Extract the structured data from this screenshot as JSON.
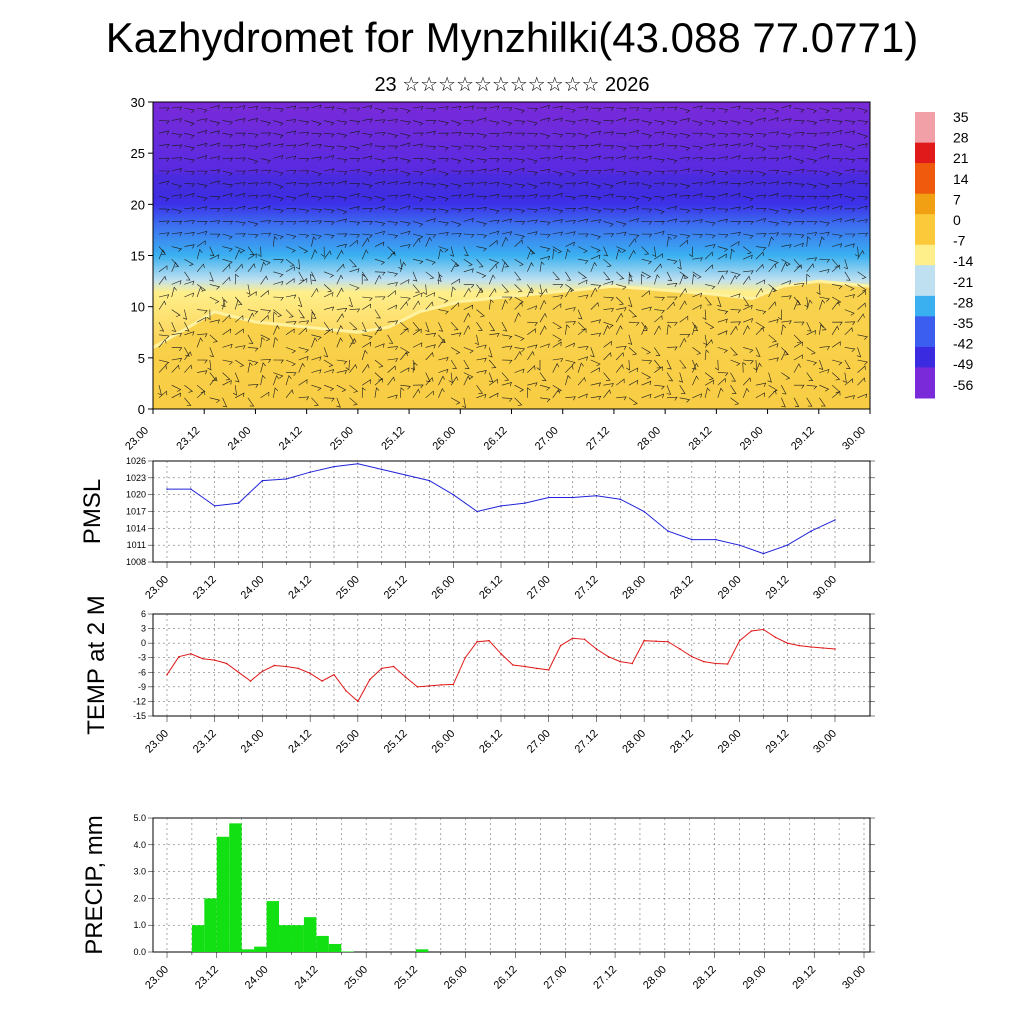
{
  "title": "Kazhydromet for Mynzhilki(43.088 77.0771)",
  "subtitle": {
    "day": "23",
    "month_glyphs": "☆☆☆☆☆☆☆☆☆☆☆",
    "year": "2026"
  },
  "time_labels": [
    "23.00",
    "23.12",
    "24.00",
    "24.12",
    "25.00",
    "25.12",
    "26.00",
    "26.12",
    "27.00",
    "27.12",
    "28.00",
    "28.12",
    "29.00",
    "29.12",
    "30.00"
  ],
  "chart_data": [
    {
      "type": "heatmap",
      "name": "temperature-wind-cross-section",
      "xlabel": "",
      "ylabel": "",
      "ylim": [
        0,
        30
      ],
      "yticks": [
        "0",
        "5",
        "10",
        "15",
        "20",
        "25",
        "30"
      ],
      "colorbar": {
        "labels": [
          "35",
          "28",
          "21",
          "14",
          "7",
          "0",
          "-7",
          "-14",
          "-21",
          "-28",
          "-35",
          "-42",
          "-49",
          "-56"
        ],
        "range": [
          -60,
          40
        ],
        "colors": [
          "#7a2ad8",
          "#3a2ae0",
          "#3c5ef0",
          "#3ab0f0",
          "#bfe0f0",
          "#ffef8a",
          "#fbc93a",
          "#f0a012",
          "#f05a0c",
          "#e01a1a",
          "#f2a0a8"
        ]
      },
      "surface_levels_x_y": [
        [
          0,
          0.5
        ],
        [
          1,
          0.9
        ],
        [
          2,
          0.6
        ],
        [
          3,
          -0.4
        ],
        [
          4,
          -1.0
        ],
        [
          5,
          0.4
        ],
        [
          6,
          1.0
        ],
        [
          7,
          1.4
        ],
        [
          8,
          1.6
        ],
        [
          9,
          1.2
        ],
        [
          10,
          1.0
        ],
        [
          11,
          1.2
        ],
        [
          12,
          1.0
        ],
        [
          13,
          0.8
        ],
        [
          14,
          0.6
        ]
      ],
      "zero_isotherm_level_x_y": [
        [
          0,
          6
        ],
        [
          0.7,
          8
        ],
        [
          1.2,
          9.5
        ],
        [
          2,
          8.5
        ],
        [
          3,
          8
        ],
        [
          4,
          7.5
        ],
        [
          4.6,
          8
        ],
        [
          5.2,
          9.5
        ],
        [
          6,
          10.5
        ],
        [
          7,
          11
        ],
        [
          8,
          11.5
        ],
        [
          9,
          12
        ],
        [
          10,
          11.6
        ],
        [
          11,
          11.2
        ],
        [
          11.7,
          10.8
        ],
        [
          12.3,
          12
        ],
        [
          13,
          12.5
        ],
        [
          14,
          12
        ]
      ]
    },
    {
      "type": "line",
      "name": "PMSL",
      "ylabel": "PMSL",
      "ylim": [
        1008,
        1026
      ],
      "yticks": [
        "1008",
        "1011",
        "1014",
        "1017",
        "1020",
        "1023",
        "1026"
      ],
      "color": "#1f22d8",
      "x": [
        0,
        0.5,
        1,
        1.5,
        2,
        2.5,
        3,
        3.5,
        4,
        4.5,
        5,
        5.5,
        6,
        6.5,
        7,
        7.5,
        8,
        8.5,
        9,
        9.5,
        10,
        10.5,
        11,
        11.5,
        12,
        12.5,
        13,
        13.5,
        14
      ],
      "values": [
        1021,
        1021,
        1018,
        1018.5,
        1022.5,
        1022.8,
        1024,
        1025,
        1025.5,
        1024.5,
        1023.5,
        1022.5,
        1020,
        1017,
        1018,
        1018.5,
        1019.5,
        1019.5,
        1019.8,
        1019.2,
        1017,
        1013.5,
        1012,
        1012,
        1011,
        1009.5,
        1011,
        1013.5,
        1015.5
      ]
    },
    {
      "type": "line",
      "name": "TEMP at 2 M",
      "ylabel": "TEMP at 2 M",
      "ylim": [
        -15,
        6
      ],
      "yticks": [
        "-15",
        "-12",
        "-9",
        "-6",
        "-3",
        "0",
        "3",
        "6"
      ],
      "color": "#e01818",
      "x": [
        0,
        0.25,
        0.5,
        0.75,
        1,
        1.25,
        1.5,
        1.75,
        2,
        2.25,
        2.5,
        2.75,
        3,
        3.25,
        3.5,
        3.75,
        4,
        4.25,
        4.5,
        4.75,
        5,
        5.25,
        5.5,
        5.75,
        6,
        6.25,
        6.5,
        6.75,
        7,
        7.25,
        7.5,
        7.75,
        8,
        8.25,
        8.5,
        8.75,
        9,
        9.25,
        9.5,
        9.75,
        10,
        10.25,
        10.5,
        10.75,
        11,
        11.25,
        11.5,
        11.75,
        12,
        12.25,
        12.5,
        12.75,
        13,
        13.25,
        13.5,
        13.75,
        14
      ],
      "values": [
        -6.5,
        -2.8,
        -2.2,
        -3.2,
        -3.5,
        -4.2,
        -6,
        -7.8,
        -5.8,
        -4.6,
        -4.8,
        -5.2,
        -6.2,
        -7.8,
        -6.5,
        -9.8,
        -12,
        -7.5,
        -5.2,
        -4.8,
        -7,
        -9,
        -8.8,
        -8.6,
        -8.5,
        -3,
        0.3,
        0.5,
        -2.2,
        -4.5,
        -4.8,
        -5.2,
        -5.5,
        -0.5,
        1,
        0.8,
        -1.2,
        -2.8,
        -3.8,
        -4.2,
        0.5,
        0.4,
        0.3,
        -1.2,
        -2.8,
        -3.8,
        -4.2,
        -4.3,
        0.5,
        2.5,
        2.8,
        1.2,
        0,
        -0.5,
        -0.8,
        -1,
        -1.2
      ]
    },
    {
      "type": "bar",
      "name": "PRECIP, mm",
      "ylabel": "PRECIP, mm",
      "ylim": [
        0,
        5
      ],
      "yticks": [
        "0.0",
        "1.0",
        "2.0",
        "3.0",
        "4.0",
        "5.0"
      ],
      "color": "#12e012",
      "bar_width_steps": 0.25,
      "x_start": [
        0.5,
        0.75,
        1.0,
        1.25,
        1.5,
        1.75,
        2.0,
        2.25,
        2.5,
        2.75,
        3.0,
        3.25,
        3.5,
        5.0
      ],
      "values": [
        1.0,
        2.0,
        4.3,
        4.8,
        0.1,
        0.2,
        1.9,
        1.0,
        1.0,
        1.3,
        0.6,
        0.3,
        0.02,
        0.1
      ]
    }
  ]
}
